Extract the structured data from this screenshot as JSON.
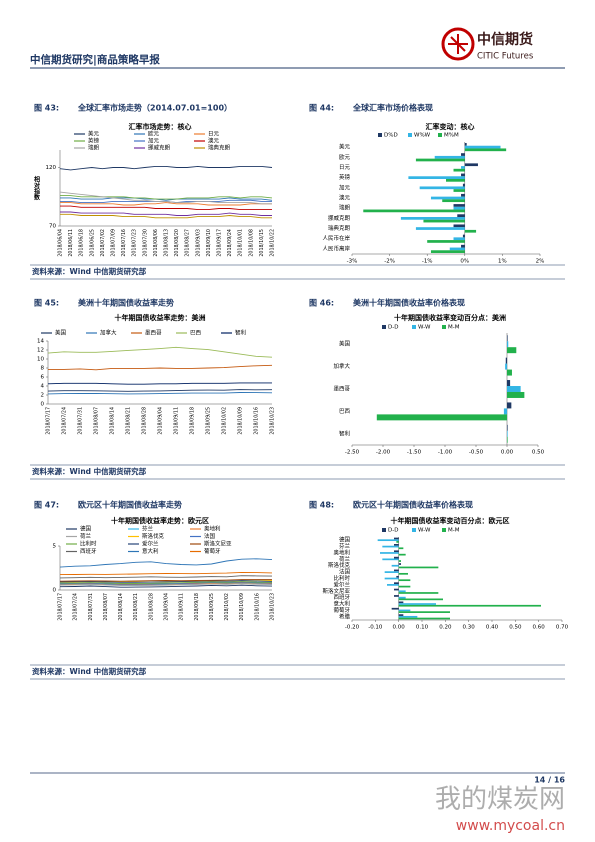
{
  "header": {
    "title": "中信期货研究|商品策略早报",
    "logo_cn": "中信期货",
    "logo_en": "CITIC Futures"
  },
  "figures": [
    {
      "number": "图 43:",
      "caption": "全球汇率市场走势（2014.07.01=100）"
    },
    {
      "number": "图 44:",
      "caption": "全球汇率市场价格表现"
    },
    {
      "number": "图 45:",
      "caption": "美洲十年期国债收益率走势"
    },
    {
      "number": "图 46:",
      "caption": "美洲十年期国债收益率价格表现"
    },
    {
      "number": "图 47:",
      "caption": "欧元区十年期国债收益率走势"
    },
    {
      "number": "图 48:",
      "caption": "欧元区十年期国债收益率价格表现"
    }
  ],
  "source": "资料来源：Wind  中信期货研究部",
  "chart_data": [
    {
      "type": "line",
      "title": "汇率市场走势：核心",
      "y_label": "相对指数",
      "ylim": [
        70,
        135
      ],
      "yticks": [
        70,
        120
      ],
      "categories": [
        "2018/06/04",
        "2018/06/11",
        "2018/06/18",
        "2018/06/25",
        "2018/07/02",
        "2018/07/09",
        "2018/07/16",
        "2018/07/23",
        "2018/07/30",
        "2018/08/06",
        "2018/08/13",
        "2018/08/20",
        "2018/08/27",
        "2018/09/03",
        "2018/09/10",
        "2018/09/17",
        "2018/09/24",
        "2018/10/01",
        "2018/10/08",
        "2018/10/15",
        "2018/10/22"
      ],
      "series": [
        {
          "name": "美元",
          "color": "#1f3864",
          "values": [
            119,
            118,
            119,
            120,
            119,
            120,
            120,
            119,
            120,
            121,
            121,
            120,
            120,
            121,
            120,
            120,
            120,
            121,
            121,
            121,
            120
          ]
        },
        {
          "name": "欧元",
          "color": "#2e75b6",
          "values": [
            94,
            94,
            93,
            93,
            93,
            94,
            94,
            94,
            93,
            93,
            92,
            93,
            93,
            93,
            93,
            93,
            94,
            93,
            93,
            93,
            92
          ]
        },
        {
          "name": "日元",
          "color": "#ed7d31",
          "values": [
            90,
            90,
            89,
            89,
            89,
            89,
            88,
            88,
            89,
            89,
            90,
            89,
            89,
            89,
            88,
            88,
            88,
            88,
            89,
            89,
            89
          ]
        },
        {
          "name": "英镑",
          "color": "#70ad47",
          "values": [
            96,
            96,
            95,
            95,
            95,
            95,
            95,
            94,
            94,
            93,
            93,
            93,
            94,
            94,
            94,
            95,
            95,
            94,
            95,
            95,
            94
          ]
        },
        {
          "name": "加元",
          "color": "#4472c4",
          "values": [
            91,
            91,
            90,
            90,
            90,
            91,
            91,
            91,
            91,
            91,
            91,
            90,
            91,
            91,
            91,
            91,
            92,
            92,
            92,
            91,
            91
          ]
        },
        {
          "name": "澳元",
          "color": "#c00000",
          "values": [
            87,
            87,
            86,
            86,
            86,
            86,
            86,
            86,
            86,
            85,
            85,
            85,
            85,
            84,
            84,
            85,
            85,
            84,
            84,
            84,
            84
          ]
        },
        {
          "name": "瑞朗",
          "color": "#a5a5a5",
          "values": [
            99,
            98,
            97,
            96,
            95,
            94,
            93,
            92,
            92,
            91,
            91,
            90,
            90,
            91,
            91,
            90,
            90,
            90,
            90,
            89,
            89
          ]
        },
        {
          "name": "挪威克朗",
          "color": "#7030a0",
          "values": [
            82,
            82,
            81,
            81,
            81,
            81,
            81,
            80,
            80,
            80,
            80,
            79,
            79,
            80,
            80,
            80,
            81,
            80,
            80,
            79,
            79
          ]
        },
        {
          "name": "瑞典克朗",
          "color": "#bf9000",
          "values": [
            80,
            80,
            79,
            79,
            79,
            79,
            78,
            78,
            78,
            77,
            77,
            77,
            77,
            78,
            78,
            78,
            79,
            78,
            78,
            77,
            77
          ]
        }
      ]
    },
    {
      "type": "barh",
      "title": "汇率变动：核心",
      "xlim": [
        -3,
        2
      ],
      "xticks": [
        {
          "value": -3,
          "label": "-3%"
        },
        {
          "value": -2,
          "label": "-2%"
        },
        {
          "value": -1,
          "label": "-1%"
        },
        {
          "value": 0,
          "label": "0%"
        },
        {
          "value": 1,
          "label": "1%"
        },
        {
          "value": 2,
          "label": "2%"
        }
      ],
      "categories": [
        "美元",
        "欧元",
        "日元",
        "英镑",
        "加元",
        "澳元",
        "瑞朗",
        "挪威克朗",
        "瑞典克朗",
        "人民币在岸",
        "人民币离岸"
      ],
      "series": [
        {
          "name": "D%D",
          "color": "#1f3864",
          "values": [
            0.05,
            -0.1,
            0.35,
            -0.1,
            -0.05,
            -0.1,
            -0.3,
            -0.2,
            -0.3,
            -0.05,
            -0.1
          ]
        },
        {
          "name": "W%W",
          "color": "#33b5e5",
          "values": [
            0.95,
            -0.8,
            -0.1,
            -1.5,
            -1.2,
            -0.9,
            -0.3,
            -1.7,
            -1.3,
            -0.3,
            -0.4
          ]
        },
        {
          "name": "M%M",
          "color": "#22b14c",
          "values": [
            1.1,
            -1.3,
            -0.3,
            -0.5,
            -0.3,
            -0.6,
            -2.7,
            -1.1,
            0.3,
            -1.0,
            -0.9
          ]
        }
      ]
    },
    {
      "type": "line",
      "title": "十年期国债收益率走势：美洲",
      "ylim": [
        0,
        14
      ],
      "yticks": [
        0,
        2,
        4,
        6,
        8,
        10,
        12,
        14
      ],
      "categories": [
        "2018/07/17",
        "2018/07/24",
        "2018/07/31",
        "2018/08/07",
        "2018/08/14",
        "2018/08/21",
        "2018/08/28",
        "2018/09/04",
        "2018/09/11",
        "2018/09/18",
        "2018/09/25",
        "2018/10/02",
        "2018/10/09",
        "2018/10/16",
        "2018/10/23"
      ],
      "series": [
        {
          "name": "美国",
          "color": "#1f3864",
          "values": [
            2.86,
            2.96,
            2.96,
            2.93,
            2.87,
            2.82,
            2.86,
            2.9,
            2.97,
            3.06,
            3.08,
            3.06,
            3.21,
            3.16,
            3.17
          ]
        },
        {
          "name": "加拿大",
          "color": "#2e75b6",
          "values": [
            2.25,
            2.32,
            2.34,
            2.36,
            2.28,
            2.24,
            2.27,
            2.3,
            2.38,
            2.43,
            2.42,
            2.43,
            2.56,
            2.53,
            2.5
          ]
        },
        {
          "name": "墨西哥",
          "color": "#c55a11",
          "values": [
            7.7,
            7.7,
            7.8,
            7.6,
            7.9,
            7.9,
            7.9,
            8.0,
            7.9,
            7.9,
            8.0,
            8.1,
            8.3,
            8.5,
            8.6
          ]
        },
        {
          "name": "巴西",
          "color": "#9bbb59",
          "values": [
            11.3,
            11.6,
            11.5,
            11.5,
            11.7,
            11.9,
            12.1,
            12.3,
            12.6,
            12.3,
            12.1,
            11.6,
            11.1,
            10.6,
            10.4
          ]
        },
        {
          "name": "智利",
          "color": "#002060",
          "values": [
            4.5,
            4.6,
            4.6,
            4.6,
            4.5,
            4.4,
            4.4,
            4.5,
            4.5,
            4.6,
            4.6,
            4.6,
            4.7,
            4.7,
            4.7
          ]
        }
      ]
    },
    {
      "type": "barh",
      "title": "十年期国债收益率变动百分点：美洲",
      "xlim": [
        -2.5,
        0.5
      ],
      "xticks": [
        {
          "value": -2.5,
          "label": "-2.50"
        },
        {
          "value": -2,
          "label": "-2.00"
        },
        {
          "value": -1.5,
          "label": "-1.50"
        },
        {
          "value": -1,
          "label": "-1.00"
        },
        {
          "value": -0.5,
          "label": "-0.50"
        },
        {
          "value": 0,
          "label": "0.00"
        },
        {
          "value": 0.5,
          "label": "0.50"
        }
      ],
      "categories": [
        "美国",
        "加拿大",
        "墨西哥",
        "巴西",
        "智利"
      ],
      "series": [
        {
          "name": "D-D",
          "color": "#1f3864",
          "values": [
            0.01,
            -0.02,
            0.05,
            0.07,
            0.01
          ]
        },
        {
          "name": "W-W",
          "color": "#33b5e5",
          "values": [
            0.02,
            -0.03,
            0.22,
            -0.05,
            0.01
          ]
        },
        {
          "name": "M-M",
          "color": "#22b14c",
          "values": [
            0.15,
            0.08,
            0.28,
            -2.1,
            0.01
          ]
        }
      ]
    },
    {
      "type": "line",
      "title": "十年期国债收益率走势：欧元区",
      "ylim": [
        0,
        5
      ],
      "yticks": [
        0,
        5
      ],
      "categories": [
        "2018/07/17",
        "2018/07/24",
        "2018/07/31",
        "2018/08/07",
        "2018/08/14",
        "2018/08/21",
        "2018/08/28",
        "2018/09/04",
        "2018/09/11",
        "2018/09/18",
        "2018/09/25",
        "2018/10/02",
        "2018/10/09",
        "2018/10/16",
        "2018/10/23"
      ],
      "series": [
        {
          "name": "德国",
          "color": "#1f3864",
          "values": [
            0.37,
            0.4,
            0.45,
            0.39,
            0.32,
            0.33,
            0.35,
            0.38,
            0.42,
            0.46,
            0.52,
            0.48,
            0.55,
            0.48,
            0.44
          ]
        },
        {
          "name": "芬兰",
          "color": "#33b5e5",
          "values": [
            0.6,
            0.62,
            0.66,
            0.6,
            0.55,
            0.55,
            0.57,
            0.6,
            0.64,
            0.68,
            0.73,
            0.7,
            0.76,
            0.7,
            0.66
          ]
        },
        {
          "name": "奥地利",
          "color": "#ed7d31",
          "values": [
            0.66,
            0.69,
            0.73,
            0.67,
            0.62,
            0.62,
            0.64,
            0.67,
            0.7,
            0.74,
            0.8,
            0.76,
            0.83,
            0.78,
            0.74
          ]
        },
        {
          "name": "荷兰",
          "color": "#a5a5a5",
          "values": [
            0.55,
            0.58,
            0.62,
            0.56,
            0.5,
            0.5,
            0.52,
            0.55,
            0.59,
            0.63,
            0.68,
            0.64,
            0.71,
            0.65,
            0.61
          ]
        },
        {
          "name": "斯洛伐克",
          "color": "#ffc000",
          "values": [
            0.9,
            0.92,
            0.95,
            0.92,
            0.9,
            0.9,
            0.92,
            0.94,
            0.96,
            0.98,
            1.02,
            1.0,
            1.06,
            1.06,
            1.08
          ]
        },
        {
          "name": "法国",
          "color": "#4472c4",
          "values": [
            0.7,
            0.73,
            0.77,
            0.71,
            0.66,
            0.66,
            0.68,
            0.71,
            0.75,
            0.8,
            0.86,
            0.82,
            0.89,
            0.83,
            0.79
          ]
        },
        {
          "name": "比利时",
          "color": "#70ad47",
          "values": [
            0.78,
            0.8,
            0.84,
            0.78,
            0.74,
            0.74,
            0.76,
            0.79,
            0.83,
            0.87,
            0.92,
            0.88,
            0.95,
            0.89,
            0.86
          ]
        },
        {
          "name": "爱尔兰",
          "color": "#264478",
          "values": [
            0.92,
            0.94,
            0.97,
            0.92,
            0.88,
            0.88,
            0.9,
            0.93,
            0.96,
            1.0,
            1.04,
            1.0,
            1.07,
            1.02,
            0.98
          ]
        },
        {
          "name": "斯洛文尼亚",
          "color": "#9e480e",
          "values": [
            1.0,
            1.02,
            1.05,
            1.02,
            1.0,
            1.02,
            1.06,
            1.08,
            1.06,
            1.08,
            1.1,
            1.12,
            1.18,
            1.18,
            1.2
          ]
        },
        {
          "name": "西班牙",
          "color": "#636363",
          "values": [
            1.38,
            1.4,
            1.44,
            1.4,
            1.43,
            1.45,
            1.5,
            1.46,
            1.44,
            1.48,
            1.52,
            1.5,
            1.62,
            1.6,
            1.58
          ]
        },
        {
          "name": "意大利",
          "color": "#2e75b6",
          "values": [
            2.6,
            2.7,
            2.75,
            2.9,
            3.0,
            3.15,
            3.2,
            3.0,
            2.9,
            2.85,
            2.95,
            3.3,
            3.5,
            3.55,
            3.45
          ]
        },
        {
          "name": "葡萄牙",
          "color": "#e66c00",
          "values": [
            1.75,
            1.76,
            1.78,
            1.77,
            1.8,
            1.82,
            1.85,
            1.88,
            1.86,
            1.85,
            1.9,
            1.92,
            2.0,
            1.98,
            1.94
          ]
        }
      ]
    },
    {
      "type": "barh",
      "title": "十年期国债收益率变动百分点：欧元区",
      "xlim": [
        -0.2,
        0.7
      ],
      "xticks": [
        {
          "value": -0.2,
          "label": "-0.20"
        },
        {
          "value": -0.1,
          "label": "-0.10"
        },
        {
          "value": 0,
          "label": "0.00"
        },
        {
          "value": 0.1,
          "label": "0.10"
        },
        {
          "value": 0.2,
          "label": "0.20"
        },
        {
          "value": 0.3,
          "label": "0.30"
        },
        {
          "value": 0.4,
          "label": "0.40"
        },
        {
          "value": 0.5,
          "label": "0.50"
        },
        {
          "value": 0.6,
          "label": "0.60"
        },
        {
          "value": 0.7,
          "label": "0.70"
        }
      ],
      "categories": [
        "德国",
        "芬兰",
        "奥地利",
        "荷兰",
        "斯洛伐克",
        "法国",
        "比利时",
        "爱尔兰",
        "斯洛文尼亚",
        "西班牙",
        "意大利",
        "葡萄牙",
        "希腊"
      ],
      "series": [
        {
          "name": "D-D",
          "color": "#1f3864",
          "values": [
            -0.02,
            -0.02,
            -0.02,
            -0.02,
            0.01,
            -0.02,
            -0.01,
            -0.02,
            -0.02,
            -0.02,
            0.02,
            -0.03,
            0.02
          ]
        },
        {
          "name": "W-W",
          "color": "#33b5e5",
          "values": [
            -0.09,
            -0.07,
            -0.08,
            -0.07,
            -0.03,
            -0.06,
            -0.06,
            -0.05,
            0.03,
            0.03,
            0.16,
            0.05,
            0.08
          ]
        },
        {
          "name": "M-M",
          "color": "#22b14c",
          "values": [
            -0.01,
            0.02,
            0.03,
            0.01,
            0.17,
            0.04,
            0.05,
            0.05,
            0.17,
            0.19,
            0.61,
            0.22,
            0.22
          ]
        }
      ]
    }
  ],
  "footer": {
    "page": "14 / 16"
  },
  "watermark": {
    "name": "我的煤炭网",
    "url": "www.mycoal.cn"
  }
}
